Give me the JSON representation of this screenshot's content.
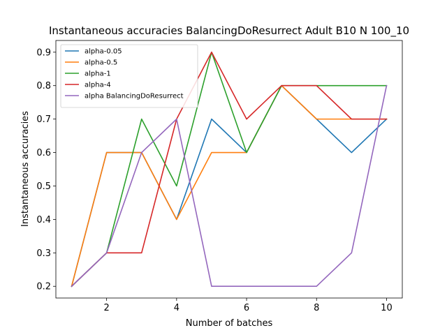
{
  "chart_data": {
    "type": "line",
    "title": "Instantaneous accuracies BalancingDoResurrect Adult B10 N 100_10",
    "xlabel": "Number of batches",
    "ylabel": "Instantaneous accuracies",
    "x": [
      1,
      2,
      3,
      4,
      5,
      6,
      7,
      8,
      9,
      10
    ],
    "xlim": [
      0.55,
      10.45
    ],
    "ylim": [
      0.165,
      0.935
    ],
    "xticks": [
      2,
      4,
      6,
      8,
      10
    ],
    "xtick_labels": [
      "2",
      "4",
      "6",
      "8",
      "10"
    ],
    "yticks": [
      0.2,
      0.3,
      0.4,
      0.5,
      0.6,
      0.7,
      0.8,
      0.9
    ],
    "ytick_labels": [
      "0.2",
      "0.3",
      "0.4",
      "0.5",
      "0.6",
      "0.7",
      "0.8",
      "0.9"
    ],
    "grid": false,
    "legend_position": "top-left",
    "series": [
      {
        "name": "alpha-0.05",
        "color": "#1f77b4",
        "values": [
          0.2,
          0.6,
          0.6,
          0.4,
          0.7,
          0.6,
          0.8,
          0.7,
          0.6,
          0.7
        ]
      },
      {
        "name": "alpha-0.5",
        "color": "#ff7f0e",
        "values": [
          0.2,
          0.6,
          0.6,
          0.4,
          0.6,
          0.6,
          0.8,
          0.7,
          0.7,
          0.7
        ]
      },
      {
        "name": "alpha-1",
        "color": "#2ca02c",
        "values": [
          0.2,
          0.3,
          0.7,
          0.5,
          0.9,
          0.6,
          0.8,
          0.8,
          0.8,
          0.8
        ]
      },
      {
        "name": "alpha-4",
        "color": "#d62728",
        "values": [
          0.2,
          0.3,
          0.3,
          0.7,
          0.9,
          0.7,
          0.8,
          0.8,
          0.7,
          0.7
        ]
      },
      {
        "name": "alpha BalancingDoResurrect",
        "color": "#9467bd",
        "values": [
          0.2,
          0.3,
          0.6,
          0.7,
          0.2,
          0.2,
          0.2,
          0.2,
          0.3,
          0.8
        ]
      }
    ]
  }
}
